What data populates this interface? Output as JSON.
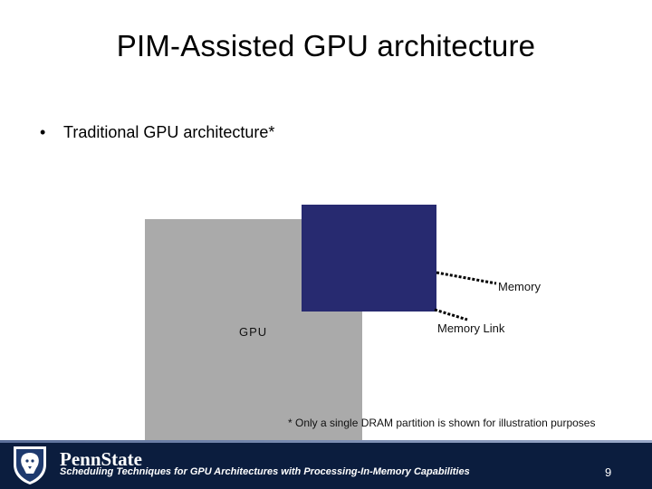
{
  "slide": {
    "title": "PIM-Assisted GPU architecture",
    "bullet": "Traditional GPU architecture*",
    "bullet_marker": "•",
    "footnote": "* Only a single DRAM partition is shown for illustration purposes"
  },
  "diagram": {
    "gpu_label": "GPU",
    "memory_label": "Memory",
    "memory_link_label": "Memory Link",
    "colors": {
      "gpu": "#aaaaaa",
      "memory": "#272a70"
    }
  },
  "footer": {
    "brand": "PennState",
    "text": "Scheduling Techniques for GPU Architectures with Processing-In-Memory Capabilities",
    "page_number": "9",
    "logo_icon": "nittany-lion-shield-icon"
  }
}
